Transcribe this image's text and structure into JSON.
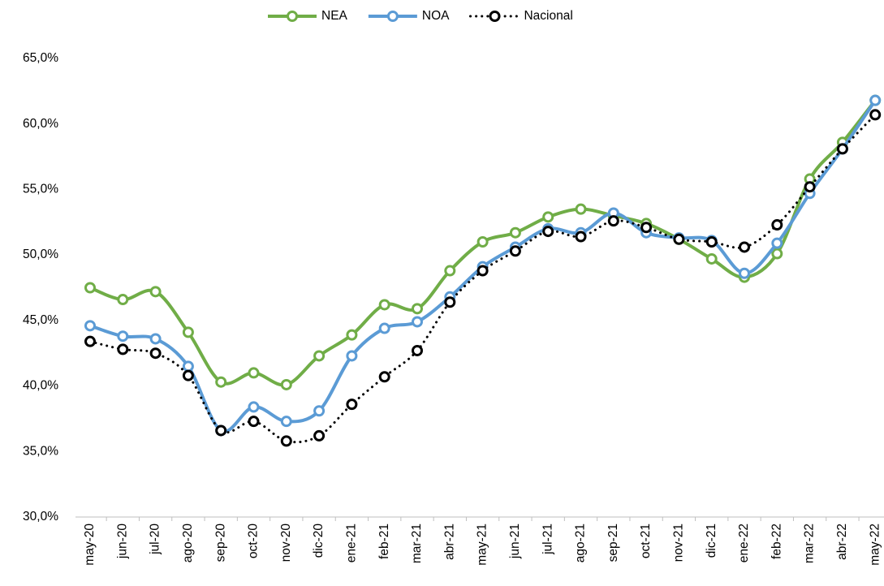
{
  "chart_data": {
    "type": "line",
    "categories": [
      "may-20",
      "jun-20",
      "jul-20",
      "ago-20",
      "sep-20",
      "oct-20",
      "nov-20",
      "dic-20",
      "ene-21",
      "feb-21",
      "mar-21",
      "abr-21",
      "may-21",
      "jun-21",
      "jul-21",
      "ago-21",
      "sep-21",
      "oct-21",
      "nov-21",
      "dic-21",
      "ene-22",
      "feb-22",
      "mar-22",
      "abr-22",
      "may-22"
    ],
    "series": [
      {
        "name": "NEA",
        "color": "#70ad47",
        "linestyle": "solid",
        "values": [
          47.5,
          46.6,
          47.2,
          44.1,
          40.3,
          41.0,
          40.1,
          42.3,
          43.9,
          46.2,
          45.9,
          48.8,
          51.0,
          51.7,
          52.9,
          53.5,
          53.0,
          52.4,
          51.2,
          49.7,
          48.3,
          50.1,
          55.8,
          58.6,
          61.8
        ]
      },
      {
        "name": "NOA",
        "color": "#5b9bd5",
        "linestyle": "solid",
        "values": [
          44.6,
          43.8,
          43.6,
          41.5,
          36.6,
          38.4,
          37.3,
          38.1,
          42.3,
          44.4,
          44.9,
          46.8,
          49.1,
          50.6,
          52.0,
          51.7,
          53.2,
          51.7,
          51.3,
          51.1,
          48.6,
          50.9,
          54.7,
          58.1,
          61.8
        ]
      },
      {
        "name": "Nacional",
        "color": "#000000",
        "linestyle": "dotted",
        "values": [
          43.4,
          42.8,
          42.5,
          40.8,
          36.6,
          37.3,
          35.8,
          36.2,
          38.6,
          40.7,
          42.7,
          46.4,
          48.8,
          50.3,
          51.8,
          51.4,
          52.6,
          52.1,
          51.2,
          51.0,
          50.6,
          52.3,
          55.2,
          58.1,
          60.7
        ]
      }
    ],
    "ylim": [
      30,
      65
    ],
    "yticks": [
      {
        "value": 30,
        "label": "30,0%"
      },
      {
        "value": 35,
        "label": "35,0%"
      },
      {
        "value": 40,
        "label": "40,0%"
      },
      {
        "value": 45,
        "label": "45,0%"
      },
      {
        "value": 50,
        "label": "50,0%"
      },
      {
        "value": 55,
        "label": "55,0%"
      },
      {
        "value": 60,
        "label": "60,0%"
      },
      {
        "value": 65,
        "label": "65,0%"
      }
    ],
    "legend": "top"
  }
}
